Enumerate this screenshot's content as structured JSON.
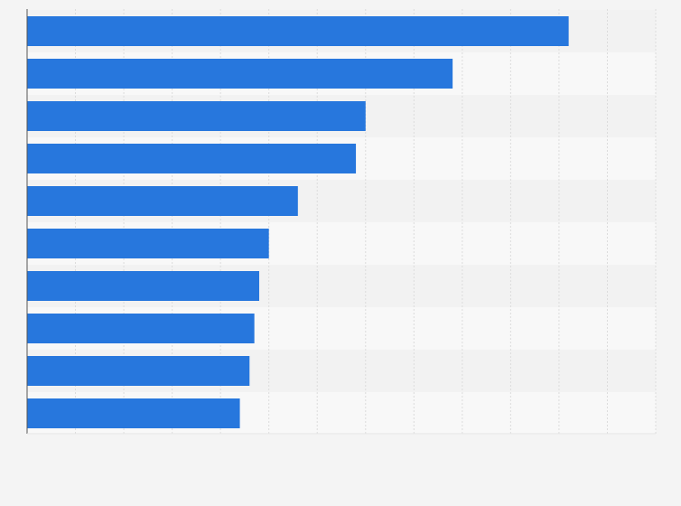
{
  "chart_data": {
    "type": "bar",
    "orientation": "horizontal",
    "title": "",
    "xlabel": "",
    "ylabel": "",
    "categories": [
      "",
      "",
      "",
      "",
      "",
      "",
      "",
      "",
      "",
      ""
    ],
    "values": [
      112,
      88,
      70,
      68,
      56,
      50,
      48,
      47,
      46,
      44
    ],
    "xlim": [
      0,
      130
    ],
    "grid": true,
    "legend": "none",
    "colors": {
      "bar": "#2777dd",
      "row_band_a": "#f2f2f2",
      "row_band_b": "#f8f8f8",
      "grid": "#dcdcdc",
      "axis": "#555555",
      "background": "#f4f4f4"
    }
  }
}
